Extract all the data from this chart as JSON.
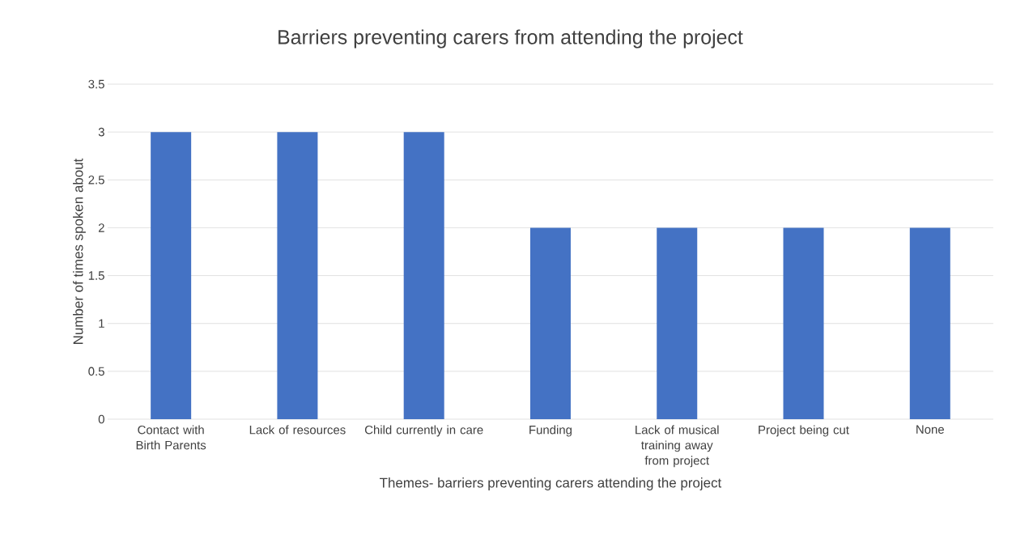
{
  "chart_data": {
    "type": "bar",
    "title": "Barriers preventing carers from attending the project",
    "xlabel": "Themes- barriers preventing carers attending the project",
    "ylabel": "Number of times spoken about",
    "categories": [
      "Contact with Birth Parents",
      "Lack of resources",
      "Child currently in care",
      "Funding",
      "Lack of musical training away from project",
      "Project being cut",
      "None"
    ],
    "values": [
      3,
      3,
      3,
      2,
      2,
      2,
      2
    ],
    "color": "#4472c4",
    "ylim": [
      0,
      3.5
    ],
    "yticks": [
      0,
      0.5,
      1,
      1.5,
      2,
      2.5,
      3,
      3.5
    ],
    "grid": "y"
  }
}
